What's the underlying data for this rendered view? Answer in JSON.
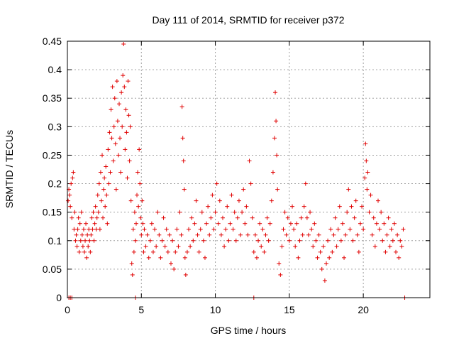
{
  "chart_data": {
    "type": "scatter",
    "title": "Day 111 of 2014, SRMTID for receiver p372",
    "xlabel": "GPS time / hours",
    "ylabel": "SRMTID / TECUs",
    "xlim": [
      0,
      24.5
    ],
    "ylim": [
      0,
      0.45
    ],
    "xticks": [
      0,
      5,
      10,
      15,
      20
    ],
    "xtick_labels": [
      "0",
      "5",
      "10",
      "15",
      "20"
    ],
    "yticks": [
      0,
      0.05,
      0.1,
      0.15,
      0.2,
      0.25,
      0.3,
      0.35,
      0.4,
      0.45
    ],
    "ytick_labels": [
      "0",
      "0.05",
      "0.1",
      "0.15",
      "0.2",
      "0.25",
      "0.3",
      "0.35",
      "0.4",
      "0.45"
    ],
    "grid": true,
    "marker": "plus",
    "color": "#e00000",
    "series": [
      {
        "name": "SRMTID",
        "points": [
          [
            0.05,
            0.17
          ],
          [
            0.1,
            0.19
          ],
          [
            0.15,
            0.18
          ],
          [
            0.2,
            0.16
          ],
          [
            0.25,
            0.2
          ],
          [
            0.3,
            0.14
          ],
          [
            0.35,
            0.21
          ],
          [
            0.4,
            0.22
          ],
          [
            0.45,
            0.12
          ],
          [
            0.5,
            0.15
          ],
          [
            0.55,
            0.1
          ],
          [
            0.6,
            0.11
          ],
          [
            0.65,
            0.09
          ],
          [
            0.7,
            0.12
          ],
          [
            0.75,
            0.14
          ],
          [
            0.8,
            0.08
          ],
          [
            0.85,
            0.13
          ],
          [
            0.9,
            0.1
          ],
          [
            0.95,
            0.15
          ],
          [
            1.0,
            0.11
          ],
          [
            1.05,
            0.09
          ],
          [
            1.1,
            0.12
          ],
          [
            1.15,
            0.08
          ],
          [
            1.2,
            0.1
          ],
          [
            1.25,
            0.13
          ],
          [
            1.3,
            0.07
          ],
          [
            1.35,
            0.11
          ],
          [
            1.4,
            0.09
          ],
          [
            1.45,
            0.12
          ],
          [
            1.5,
            0.1
          ],
          [
            1.55,
            0.08
          ],
          [
            1.6,
            0.11
          ],
          [
            1.65,
            0.14
          ],
          [
            1.7,
            0.12
          ],
          [
            1.75,
            0.15
          ],
          [
            1.8,
            0.1
          ],
          [
            1.85,
            0.13
          ],
          [
            1.9,
            0.16
          ],
          [
            1.95,
            0.12
          ],
          [
            2.0,
            0.14
          ],
          [
            2.05,
            0.18
          ],
          [
            2.1,
            0.15
          ],
          [
            2.15,
            0.2
          ],
          [
            2.2,
            0.12
          ],
          [
            2.25,
            0.22
          ],
          [
            2.3,
            0.17
          ],
          [
            2.35,
            0.25
          ],
          [
            2.4,
            0.14
          ],
          [
            2.45,
            0.19
          ],
          [
            2.5,
            0.21
          ],
          [
            2.55,
            0.16
          ],
          [
            2.6,
            0.23
          ],
          [
            2.65,
            0.18
          ],
          [
            2.7,
            0.13
          ],
          [
            2.75,
            0.26
          ],
          [
            2.8,
            0.2
          ],
          [
            2.85,
            0.29
          ],
          [
            2.9,
            0.22
          ],
          [
            2.95,
            0.33
          ],
          [
            3.0,
            0.28
          ],
          [
            3.05,
            0.37
          ],
          [
            3.1,
            0.24
          ],
          [
            3.15,
            0.3
          ],
          [
            3.2,
            0.35
          ],
          [
            3.25,
            0.27
          ],
          [
            3.3,
            0.19
          ],
          [
            3.35,
            0.38
          ],
          [
            3.4,
            0.31
          ],
          [
            3.45,
            0.25
          ],
          [
            3.5,
            0.34
          ],
          [
            3.55,
            0.28
          ],
          [
            3.6,
            0.22
          ],
          [
            3.65,
            0.36
          ],
          [
            3.7,
            0.3
          ],
          [
            3.75,
            0.39
          ],
          [
            3.8,
            0.445
          ],
          [
            3.85,
            0.37
          ],
          [
            3.9,
            0.26
          ],
          [
            3.95,
            0.33
          ],
          [
            4.0,
            0.29
          ],
          [
            4.05,
            0.21
          ],
          [
            4.1,
            0.38
          ],
          [
            4.15,
            0.32
          ],
          [
            4.2,
            0.24
          ],
          [
            4.25,
            0.3
          ],
          [
            4.3,
            0.17
          ],
          [
            4.35,
            0.06
          ],
          [
            4.4,
            0.04
          ],
          [
            4.45,
            0.12
          ],
          [
            4.5,
            0.08
          ],
          [
            4.55,
            0.15
          ],
          [
            4.6,
            0.1
          ],
          [
            4.65,
            0.13
          ],
          [
            4.7,
            0.18
          ],
          [
            4.75,
            0.22
          ],
          [
            4.8,
            0.16
          ],
          [
            4.85,
            0.26
          ],
          [
            4.9,
            0.2
          ],
          [
            4.95,
            0.14
          ],
          [
            5.0,
            0.11
          ],
          [
            5.05,
            0.17
          ],
          [
            5.1,
            0.13
          ],
          [
            5.15,
            0.08
          ],
          [
            5.2,
            0.12
          ],
          [
            5.3,
            0.09
          ],
          [
            5.4,
            0.11
          ],
          [
            5.5,
            0.07
          ],
          [
            5.6,
            0.1
          ],
          [
            5.7,
            0.13
          ],
          [
            5.8,
            0.08
          ],
          [
            5.9,
            0.12
          ],
          [
            6.0,
            0.09
          ],
          [
            6.1,
            0.15
          ],
          [
            6.2,
            0.11
          ],
          [
            6.3,
            0.07
          ],
          [
            6.4,
            0.1
          ],
          [
            6.5,
            0.14
          ],
          [
            6.6,
            0.09
          ],
          [
            6.7,
            0.12
          ],
          [
            6.8,
            0.08
          ],
          [
            6.9,
            0.11
          ],
          [
            7.0,
            0.06
          ],
          [
            7.1,
            0.1
          ],
          [
            7.2,
            0.05
          ],
          [
            7.3,
            0.08
          ],
          [
            7.4,
            0.12
          ],
          [
            7.5,
            0.09
          ],
          [
            7.6,
            0.15
          ],
          [
            7.7,
            0.11
          ],
          [
            7.75,
            0.335
          ],
          [
            7.8,
            0.28
          ],
          [
            7.85,
            0.24
          ],
          [
            7.9,
            0.19
          ],
          [
            7.95,
            0.07
          ],
          [
            8.0,
            0.04
          ],
          [
            8.1,
            0.08
          ],
          [
            8.2,
            0.12
          ],
          [
            8.3,
            0.09
          ],
          [
            8.4,
            0.14
          ],
          [
            8.5,
            0.1
          ],
          [
            8.6,
            0.13
          ],
          [
            8.7,
            0.17
          ],
          [
            8.8,
            0.11
          ],
          [
            8.9,
            0.08
          ],
          [
            9.0,
            0.12
          ],
          [
            9.1,
            0.15
          ],
          [
            9.2,
            0.1
          ],
          [
            9.3,
            0.07
          ],
          [
            9.4,
            0.13
          ],
          [
            9.5,
            0.16
          ],
          [
            9.6,
            0.11
          ],
          [
            9.7,
            0.14
          ],
          [
            9.8,
            0.18
          ],
          [
            9.9,
            0.12
          ],
          [
            10.0,
            0.15
          ],
          [
            10.1,
            0.2
          ],
          [
            10.2,
            0.13
          ],
          [
            10.3,
            0.17
          ],
          [
            10.4,
            0.11
          ],
          [
            10.5,
            0.14
          ],
          [
            10.6,
            0.09
          ],
          [
            10.7,
            0.12
          ],
          [
            10.8,
            0.16
          ],
          [
            10.9,
            0.1
          ],
          [
            11.0,
            0.13
          ],
          [
            11.1,
            0.18
          ],
          [
            11.2,
            0.12
          ],
          [
            11.3,
            0.15
          ],
          [
            11.4,
            0.1
          ],
          [
            11.5,
            0.14
          ],
          [
            11.6,
            0.17
          ],
          [
            11.7,
            0.11
          ],
          [
            11.8,
            0.15
          ],
          [
            11.9,
            0.19
          ],
          [
            12.0,
            0.13
          ],
          [
            12.1,
            0.16
          ],
          [
            12.2,
            0.11
          ],
          [
            12.3,
            0.24
          ],
          [
            12.4,
            0.2
          ],
          [
            12.5,
            0.14
          ],
          [
            12.6,
            0.08
          ],
          [
            12.7,
            0.11
          ],
          [
            12.8,
            0.07
          ],
          [
            12.9,
            0.1
          ],
          [
            13.0,
            0.13
          ],
          [
            13.1,
            0.09
          ],
          [
            13.2,
            0.12
          ],
          [
            13.3,
            0.08
          ],
          [
            13.4,
            0.11
          ],
          [
            13.5,
            0.14
          ],
          [
            13.6,
            0.1
          ],
          [
            13.7,
            0.13
          ],
          [
            13.8,
            0.17
          ],
          [
            13.9,
            0.22
          ],
          [
            14.0,
            0.28
          ],
          [
            14.05,
            0.36
          ],
          [
            14.1,
            0.31
          ],
          [
            14.15,
            0.25
          ],
          [
            14.2,
            0.19
          ],
          [
            14.3,
            0.06
          ],
          [
            14.4,
            0.04
          ],
          [
            14.5,
            0.09
          ],
          [
            14.6,
            0.12
          ],
          [
            14.7,
            0.15
          ],
          [
            14.8,
            0.11
          ],
          [
            14.9,
            0.14
          ],
          [
            15.0,
            0.1
          ],
          [
            15.1,
            0.13
          ],
          [
            15.2,
            0.16
          ],
          [
            15.3,
            0.12
          ],
          [
            15.4,
            0.09
          ],
          [
            15.5,
            0.13
          ],
          [
            15.6,
            0.07
          ],
          [
            15.7,
            0.1
          ],
          [
            15.8,
            0.14
          ],
          [
            15.9,
            0.11
          ],
          [
            16.0,
            0.16
          ],
          [
            16.1,
            0.2
          ],
          [
            16.2,
            0.14
          ],
          [
            16.3,
            0.11
          ],
          [
            16.4,
            0.15
          ],
          [
            16.5,
            0.12
          ],
          [
            16.6,
            0.09
          ],
          [
            16.7,
            0.13
          ],
          [
            16.8,
            0.1
          ],
          [
            16.9,
            0.07
          ],
          [
            17.0,
            0.11
          ],
          [
            17.1,
            0.08
          ],
          [
            17.2,
            0.05
          ],
          [
            17.3,
            0.09
          ],
          [
            17.4,
            0.03
          ],
          [
            17.5,
            0.06
          ],
          [
            17.6,
            0.1
          ],
          [
            17.7,
            0.07
          ],
          [
            17.8,
            0.12
          ],
          [
            17.9,
            0.08
          ],
          [
            18.0,
            0.11
          ],
          [
            18.1,
            0.14
          ],
          [
            18.2,
            0.09
          ],
          [
            18.3,
            0.12
          ],
          [
            18.4,
            0.16
          ],
          [
            18.5,
            0.1
          ],
          [
            18.6,
            0.13
          ],
          [
            18.7,
            0.07
          ],
          [
            18.8,
            0.11
          ],
          [
            18.9,
            0.15
          ],
          [
            19.0,
            0.19
          ],
          [
            19.1,
            0.12
          ],
          [
            19.2,
            0.16
          ],
          [
            19.3,
            0.1
          ],
          [
            19.4,
            0.14
          ],
          [
            19.5,
            0.17
          ],
          [
            19.6,
            0.11
          ],
          [
            19.7,
            0.08
          ],
          [
            19.8,
            0.13
          ],
          [
            19.9,
            0.16
          ],
          [
            20.0,
            0.12
          ],
          [
            20.1,
            0.21
          ],
          [
            20.15,
            0.27
          ],
          [
            20.2,
            0.24
          ],
          [
            20.25,
            0.19
          ],
          [
            20.3,
            0.22
          ],
          [
            20.4,
            0.15
          ],
          [
            20.5,
            0.18
          ],
          [
            20.6,
            0.11
          ],
          [
            20.7,
            0.14
          ],
          [
            20.8,
            0.09
          ],
          [
            20.9,
            0.13
          ],
          [
            21.0,
            0.17
          ],
          [
            21.1,
            0.12
          ],
          [
            21.2,
            0.15
          ],
          [
            21.3,
            0.1
          ],
          [
            21.4,
            0.13
          ],
          [
            21.5,
            0.08
          ],
          [
            21.6,
            0.11
          ],
          [
            21.7,
            0.14
          ],
          [
            21.8,
            0.09
          ],
          [
            21.9,
            0.12
          ],
          [
            22.0,
            0.1
          ],
          [
            22.1,
            0.13
          ],
          [
            22.2,
            0.08
          ],
          [
            22.3,
            0.11
          ],
          [
            22.4,
            0.07
          ],
          [
            22.5,
            0.1
          ],
          [
            22.6,
            0.09
          ],
          [
            22.7,
            0.12
          ]
        ]
      }
    ],
    "zero_markers": [
      0.1,
      0.2,
      0.3,
      4.6,
      12.6,
      22.8
    ]
  }
}
